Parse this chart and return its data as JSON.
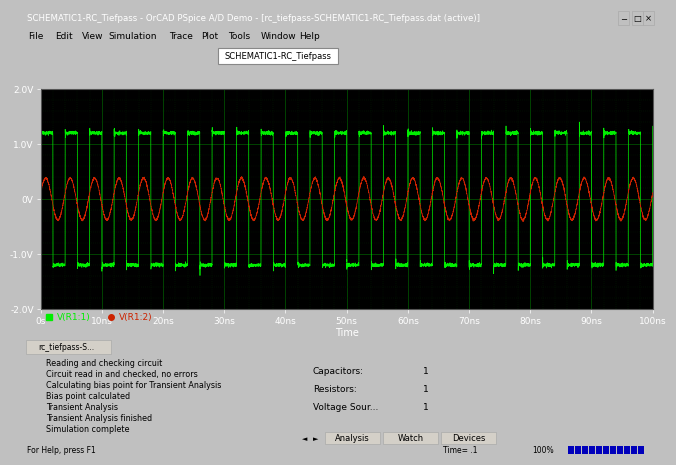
{
  "title_bar": "SCHEMATIC1-RC_Tiefpass - OrCAD PSpice A/D Demo - [rc_tiefpass-SCHEMATIC1-RC_Tiefpass.dat (active)]",
  "plot_bg": "#000000",
  "window_bg": "#c0c0c0",
  "toolbar_bg": "#d4d0c8",
  "trace1_color": "#00ee00",
  "trace2_color": "#cc2200",
  "trace1_label": "V(R1:1)",
  "trace2_label": "V(R1:2)",
  "xlabel": "Time",
  "xlim": [
    0,
    1e-07
  ],
  "ylim": [
    -2.0,
    2.0
  ],
  "yticks": [
    -2.0,
    -1.0,
    0.0,
    1.0,
    2.0
  ],
  "ytick_labels": [
    "-2.0V",
    "-1.0V",
    "0V",
    "1.0V",
    "2.0V"
  ],
  "xticks": [
    0,
    1e-08,
    2e-08,
    3e-08,
    4e-08,
    5e-08,
    6e-08,
    7e-08,
    8e-08,
    9e-08,
    1e-07
  ],
  "xtick_labels": [
    "0s",
    "10ns",
    "20ns",
    "30ns",
    "40ns",
    "50ns",
    "60ns",
    "70ns",
    "80ns",
    "90ns",
    "100ns"
  ],
  "freq_hz": 250000000.0,
  "amplitude1": 1.2,
  "amplitude2": 0.38,
  "log_messages": [
    "Reading and checking circuit",
    "Circuit read in and checked, no errors",
    "Calculating bias point for Transient Analysis",
    "Bias point calculated",
    "Transient Analysis",
    "Transient Analysis finished",
    "Simulation complete"
  ],
  "components": [
    [
      "Capacitors:",
      "1"
    ],
    [
      "Resistors:",
      "1"
    ],
    [
      "Voltage Sour...",
      "1"
    ]
  ],
  "tab_label": "rc_tiefpass-S...",
  "toolbar_label": "SCHEMATIC1-RC_Tiefpass",
  "menus": [
    "File",
    "Edit",
    "View",
    "Simulation",
    "Trace",
    "Plot",
    "Tools",
    "Window",
    "Help"
  ]
}
